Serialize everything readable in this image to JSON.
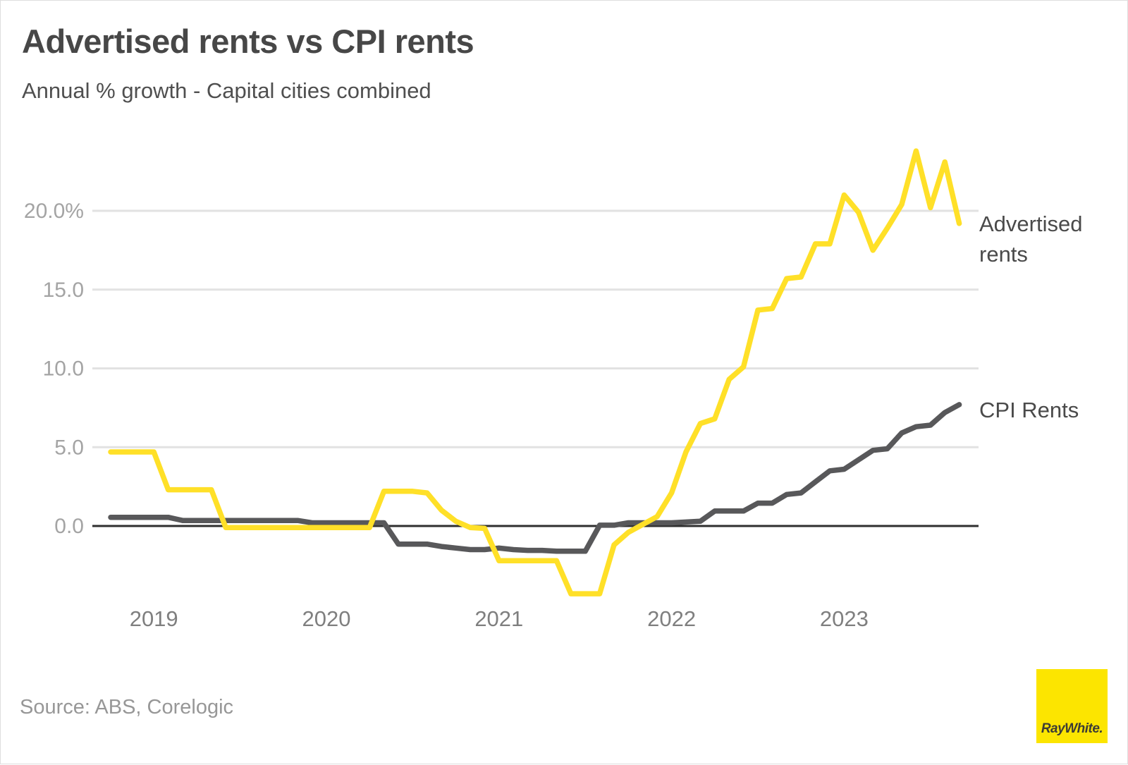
{
  "header": {
    "title": "Advertised rents vs CPI rents",
    "subtitle": "Annual % growth - Capital cities combined"
  },
  "footer": {
    "source": "Source: ABS, Corelogic",
    "logo_text": "RayWhite."
  },
  "colors": {
    "advertised_line": "#ffe028",
    "cpi_line": "#58585a",
    "gridline": "#e2e2e2",
    "zero_line": "#2e2e2e",
    "y_tick_label": "#a4a4a4",
    "x_tick_label": "#7f7f7f",
    "series_label_text": "#4a4a4a",
    "logo_background": "#fce500"
  },
  "chart_data": {
    "type": "line",
    "title": "Advertised rents vs CPI rents",
    "subtitle": "Annual % growth - Capital cities combined",
    "xlabel": "",
    "ylabel": "Annual % growth",
    "ylim": [
      -5.5,
      24.5
    ],
    "grid": true,
    "legend_position": "line-end-labels-right",
    "yticks": [
      0,
      5,
      10,
      15,
      20
    ],
    "ytick_labels": [
      "0.0",
      "5.0",
      "10.0",
      "15.0",
      "20.0%"
    ],
    "year_ticks": [
      {
        "label": "2019",
        "month_index": 3
      },
      {
        "label": "2020",
        "month_index": 15
      },
      {
        "label": "2021",
        "month_index": 27
      },
      {
        "label": "2022",
        "month_index": 39
      },
      {
        "label": "2023",
        "month_index": 51
      }
    ],
    "x": [
      "2018-10",
      "2018-11",
      "2018-12",
      "2019-01",
      "2019-02",
      "2019-03",
      "2019-04",
      "2019-05",
      "2019-06",
      "2019-07",
      "2019-08",
      "2019-09",
      "2019-10",
      "2019-11",
      "2019-12",
      "2020-01",
      "2020-02",
      "2020-03",
      "2020-04",
      "2020-05",
      "2020-06",
      "2020-07",
      "2020-08",
      "2020-09",
      "2020-10",
      "2020-11",
      "2020-12",
      "2021-01",
      "2021-02",
      "2021-03",
      "2021-04",
      "2021-05",
      "2021-06",
      "2021-07",
      "2021-08",
      "2021-09",
      "2021-10",
      "2021-11",
      "2021-12",
      "2022-01",
      "2022-02",
      "2022-03",
      "2022-04",
      "2022-05",
      "2022-06",
      "2022-07",
      "2022-08",
      "2022-09",
      "2022-10",
      "2022-11",
      "2022-12",
      "2023-01",
      "2023-02",
      "2023-03",
      "2023-04",
      "2023-05",
      "2023-06",
      "2023-07",
      "2023-08",
      "2023-09"
    ],
    "series": [
      {
        "name": "CPI Rents",
        "color": "#58585a",
        "values": [
          0.55,
          0.55,
          0.55,
          0.55,
          0.55,
          0.35,
          0.35,
          0.35,
          0.35,
          0.35,
          0.35,
          0.35,
          0.35,
          0.35,
          0.2,
          0.2,
          0.2,
          0.2,
          0.2,
          0.2,
          -1.15,
          -1.15,
          -1.15,
          -1.3,
          -1.4,
          -1.5,
          -1.5,
          -1.4,
          -1.5,
          -1.55,
          -1.55,
          -1.6,
          -1.6,
          -1.6,
          0.05,
          0.05,
          0.2,
          0.2,
          0.2,
          0.2,
          0.25,
          0.3,
          0.95,
          0.95,
          0.95,
          1.45,
          1.45,
          2.0,
          2.1,
          2.8,
          3.5,
          3.6,
          4.2,
          4.8,
          4.9,
          5.9,
          6.3,
          6.4,
          7.2,
          7.7
        ]
      },
      {
        "name": "Advertised rents",
        "color": "#ffe028",
        "values": [
          4.7,
          4.7,
          4.7,
          4.7,
          2.3,
          2.3,
          2.3,
          2.3,
          -0.1,
          -0.1,
          -0.1,
          -0.1,
          -0.1,
          -0.1,
          -0.1,
          -0.1,
          -0.1,
          -0.1,
          -0.1,
          2.2,
          2.2,
          2.2,
          2.1,
          1.0,
          0.3,
          -0.1,
          -0.15,
          -2.2,
          -2.2,
          -2.2,
          -2.2,
          -2.2,
          -4.3,
          -4.3,
          -4.3,
          -1.2,
          -0.4,
          0.1,
          0.6,
          2.1,
          4.7,
          6.5,
          6.8,
          9.3,
          10.1,
          13.7,
          13.8,
          15.7,
          15.8,
          17.9,
          17.9,
          21.0,
          19.9,
          17.5,
          18.9,
          20.4,
          23.8,
          20.2,
          23.1,
          19.2
        ]
      }
    ]
  }
}
